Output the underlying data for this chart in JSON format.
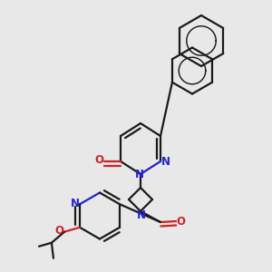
{
  "background_color": "#e8e8e8",
  "bond_color": "#1a1a1a",
  "nitrogen_color": "#2222cc",
  "oxygen_color": "#cc2222",
  "line_width": 1.6,
  "figsize": [
    3.0,
    3.0
  ],
  "dpi": 100,
  "xlim": [
    0.0,
    3.0
  ],
  "ylim": [
    0.0,
    3.0
  ]
}
